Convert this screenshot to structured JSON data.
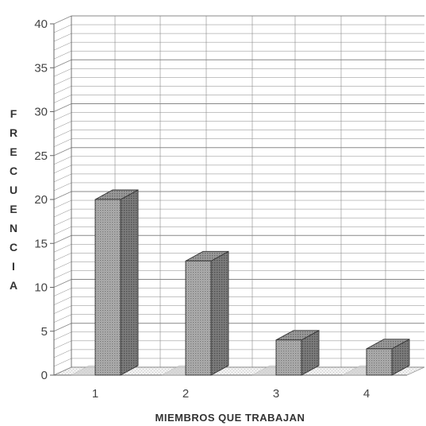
{
  "chart_data": {
    "type": "bar",
    "categories": [
      "1",
      "2",
      "3",
      "4"
    ],
    "values": [
      20,
      13,
      4,
      3
    ],
    "title": "",
    "xlabel": "MIEMBROS QUE TRABAJAN",
    "ylabel": "FRECUENCIA",
    "ylim": [
      0,
      40
    ],
    "yticks": [
      "0",
      "5",
      "10",
      "15",
      "20",
      "25",
      "30",
      "35",
      "40"
    ],
    "grid": true,
    "style": "3d",
    "colors": {
      "bar_front": "#a6a6a6",
      "bar_top": "#8c8c8c",
      "bar_side": "#6e6e6e",
      "grid": "#888888",
      "axis": "#666666"
    }
  }
}
